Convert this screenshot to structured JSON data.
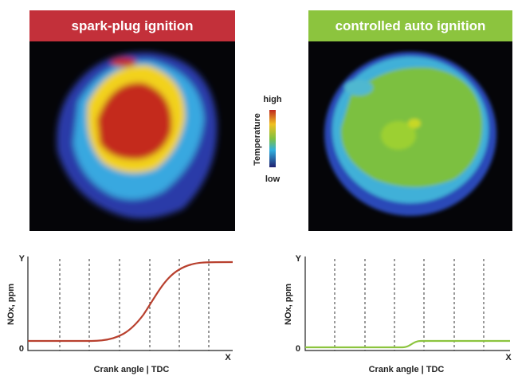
{
  "panels": [
    {
      "title": "spark-plug ignition",
      "chart": {
        "y_axis": "Y",
        "origin": "0",
        "x_axis": "X",
        "y_label": "NOx, ppm",
        "x_label": "Crank angle | TDC"
      }
    },
    {
      "title": "controlled auto ignition",
      "chart": {
        "y_axis": "Y",
        "origin": "0",
        "x_axis": "X",
        "y_label": "NOx, ppm",
        "x_label": "Crank angle | TDC"
      }
    }
  ],
  "legend": {
    "high": "high",
    "label": "Temperature",
    "low": "low"
  }
}
